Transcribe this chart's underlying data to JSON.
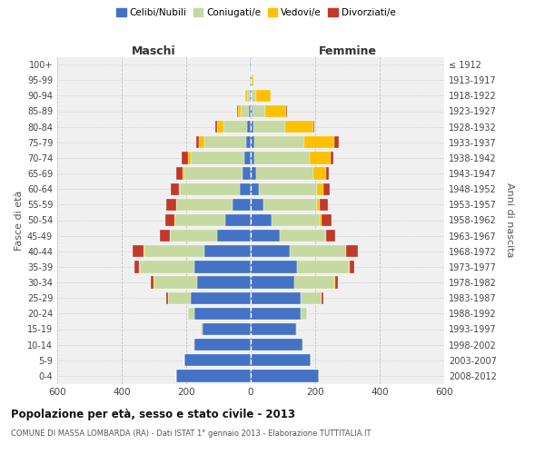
{
  "age_groups": [
    "0-4",
    "5-9",
    "10-14",
    "15-19",
    "20-24",
    "25-29",
    "30-34",
    "35-39",
    "40-44",
    "45-49",
    "50-54",
    "55-59",
    "60-64",
    "65-69",
    "70-74",
    "75-79",
    "80-84",
    "85-89",
    "90-94",
    "95-99",
    "100+"
  ],
  "birth_years": [
    "2008-2012",
    "2003-2007",
    "1998-2002",
    "1993-1997",
    "1988-1992",
    "1983-1987",
    "1978-1982",
    "1973-1977",
    "1968-1972",
    "1963-1967",
    "1958-1962",
    "1953-1957",
    "1948-1952",
    "1943-1947",
    "1938-1942",
    "1933-1937",
    "1928-1932",
    "1923-1927",
    "1918-1922",
    "1913-1917",
    "≤ 1912"
  ],
  "males": {
    "celibi": [
      230,
      205,
      175,
      150,
      175,
      185,
      165,
      175,
      145,
      105,
      80,
      55,
      35,
      25,
      20,
      15,
      10,
      5,
      3,
      2,
      2
    ],
    "coniugati": [
      0,
      1,
      2,
      5,
      20,
      70,
      135,
      170,
      185,
      145,
      155,
      175,
      185,
      180,
      165,
      130,
      75,
      25,
      8,
      2,
      1
    ],
    "vedovi": [
      0,
      0,
      0,
      0,
      0,
      1,
      1,
      1,
      1,
      1,
      1,
      2,
      3,
      5,
      10,
      15,
      20,
      10,
      5,
      0,
      0
    ],
    "divorziati": [
      0,
      0,
      0,
      0,
      0,
      5,
      10,
      15,
      35,
      30,
      30,
      30,
      25,
      20,
      20,
      10,
      5,
      2,
      0,
      0,
      0
    ]
  },
  "females": {
    "nubili": [
      210,
      185,
      160,
      140,
      155,
      155,
      135,
      145,
      120,
      90,
      65,
      40,
      25,
      18,
      12,
      10,
      8,
      5,
      3,
      2,
      2
    ],
    "coniugate": [
      0,
      1,
      2,
      5,
      20,
      65,
      125,
      160,
      175,
      140,
      150,
      165,
      180,
      175,
      170,
      155,
      100,
      40,
      15,
      2,
      1
    ],
    "vedove": [
      0,
      0,
      0,
      0,
      0,
      1,
      1,
      2,
      2,
      3,
      5,
      10,
      20,
      40,
      65,
      95,
      85,
      65,
      45,
      5,
      1
    ],
    "divorziate": [
      0,
      0,
      0,
      0,
      0,
      5,
      10,
      15,
      35,
      30,
      30,
      25,
      20,
      10,
      10,
      12,
      5,
      2,
      0,
      0,
      0
    ]
  },
  "colors": {
    "celibi": "#4472c4",
    "coniugati": "#c5d9a0",
    "vedovi": "#ffc000",
    "divorziati": "#c0392b"
  },
  "title": "Popolazione per età, sesso e stato civile - 2013",
  "subtitle": "COMUNE DI MASSA LOMBARDA (RA) - Dati ISTAT 1° gennaio 2013 - Elaborazione TUTTITALIA.IT",
  "xlabel_left": "Maschi",
  "xlabel_right": "Femmine",
  "ylabel_left": "Fasce di età",
  "ylabel_right": "Anni di nascita",
  "xlim": 600,
  "bg_color": "#f0f0f0",
  "grid_color": "#bbbbbb"
}
